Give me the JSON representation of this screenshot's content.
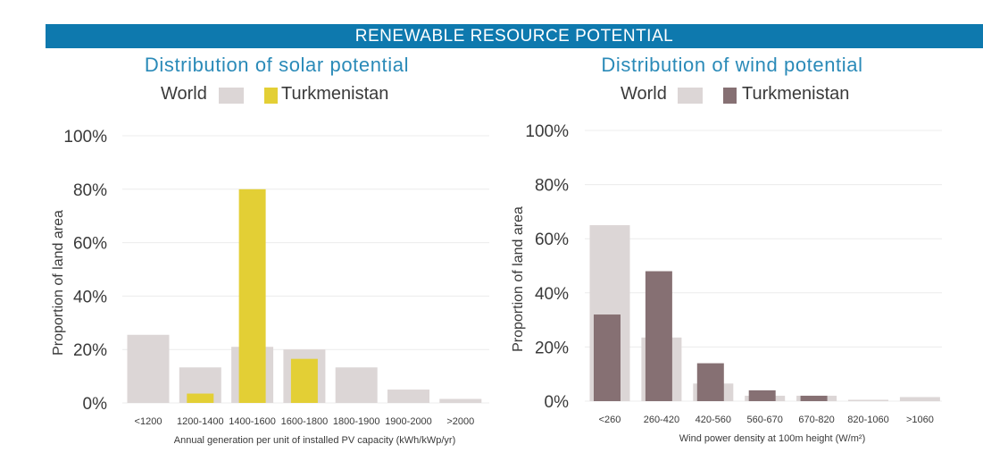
{
  "header": {
    "title": "RENEWABLE RESOURCE POTENTIAL"
  },
  "colors": {
    "banner": "#0e79ae",
    "title": "#2a8ab8",
    "world": "#dcd6d6",
    "solar_country": "#e3cf35",
    "wind_country": "#867073",
    "grid": "#ececec"
  },
  "chart_data": [
    {
      "type": "bar",
      "title": "Distribution of solar potential",
      "ylabel": "Proportion of land area",
      "xlabel": "Annual generation per unit of installed PV capacity (kWh/kWp/yr)",
      "ylim": [
        0,
        100
      ],
      "yticks": [
        "0%",
        "20%",
        "40%",
        "60%",
        "80%",
        "100%"
      ],
      "categories": [
        "<1200",
        "1200-1400",
        "1400-1600",
        "1600-1800",
        "1800-1900",
        "1900-2000",
        ">2000"
      ],
      "series": [
        {
          "name": "World",
          "values": [
            25.5,
            13.3,
            21,
            20,
            13.3,
            5,
            1.5
          ]
        },
        {
          "name": "Turkmenistan",
          "values": [
            0,
            3.5,
            80,
            16.5,
            0,
            0,
            0
          ]
        }
      ],
      "legend": "top-center",
      "grid": true
    },
    {
      "type": "bar",
      "title": "Distribution of wind potential",
      "ylabel": "Proportion of land area",
      "xlabel": "Wind power density at 100m height (W/m²)",
      "ylim": [
        0,
        100
      ],
      "yticks": [
        "0%",
        "20%",
        "40%",
        "60%",
        "80%",
        "100%"
      ],
      "categories": [
        "<260",
        "260-420",
        "420-560",
        "560-670",
        "670-820",
        "820-1060",
        ">1060"
      ],
      "series": [
        {
          "name": "World",
          "values": [
            65,
            23.5,
            6.5,
            2,
            2,
            0.5,
            1.5
          ]
        },
        {
          "name": "Turkmenistan",
          "values": [
            32,
            48,
            14,
            4,
            2,
            0,
            0
          ]
        }
      ],
      "legend": "top-center",
      "grid": true
    }
  ]
}
